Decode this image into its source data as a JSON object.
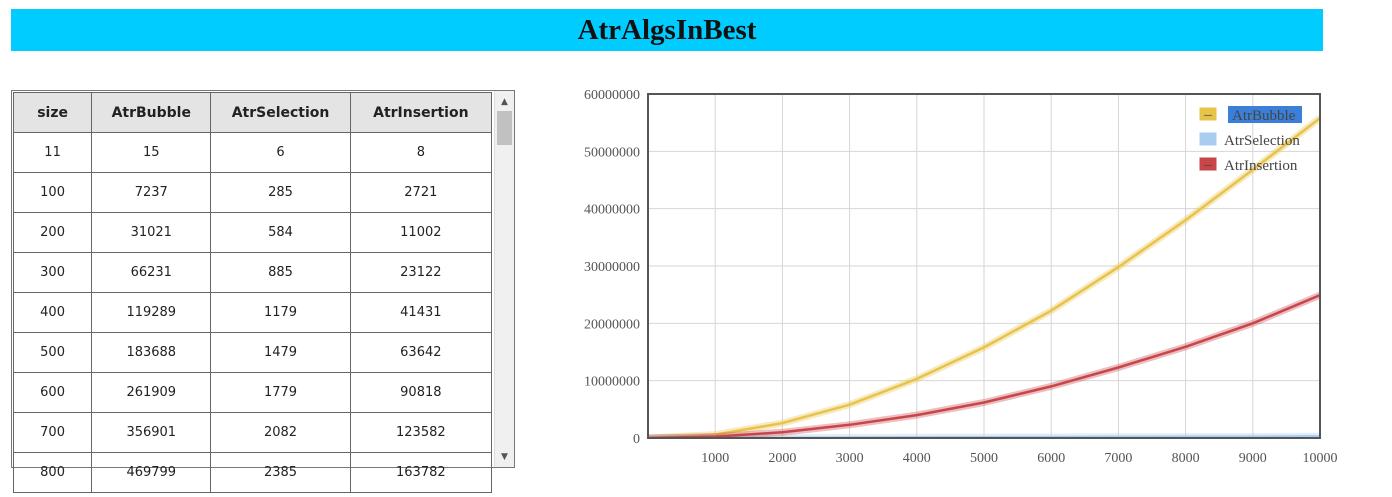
{
  "page": {
    "title": "AtrAlgsInBest"
  },
  "table": {
    "columns": [
      "size",
      "AtrBubble",
      "AtrSelection",
      "AtrInsertion"
    ],
    "rows": [
      [
        "11",
        "15",
        "6",
        "8"
      ],
      [
        "100",
        "7237",
        "285",
        "2721"
      ],
      [
        "200",
        "31021",
        "584",
        "11002"
      ],
      [
        "300",
        "66231",
        "885",
        "23122"
      ],
      [
        "400",
        "119289",
        "1179",
        "41431"
      ],
      [
        "500",
        "183688",
        "1479",
        "63642"
      ],
      [
        "600",
        "261909",
        "1779",
        "90818"
      ],
      [
        "700",
        "356901",
        "2082",
        "123582"
      ],
      [
        "800",
        "469799",
        "2385",
        "163782"
      ]
    ],
    "scroll_up_glyph": "▲",
    "scroll_down_glyph": "▼"
  },
  "chart_data": {
    "type": "line",
    "title": "",
    "xlabel": "",
    "ylabel": "",
    "xlim": [
      0,
      10000
    ],
    "ylim": [
      0,
      60000000
    ],
    "x_ticks": [
      "1000",
      "2000",
      "3000",
      "4000",
      "5000",
      "6000",
      "7000",
      "8000",
      "9000",
      "10000"
    ],
    "y_ticks": [
      "0",
      "10000000",
      "20000000",
      "30000000",
      "40000000",
      "50000000",
      "60000000"
    ],
    "grid": true,
    "legend_position": "top-right",
    "x": [
      0,
      1000,
      2000,
      3000,
      4000,
      5000,
      6000,
      7000,
      8000,
      9000,
      10000
    ],
    "series": [
      {
        "name": "AtrBubble",
        "color": "#e8c34a",
        "values": [
          0,
          600000,
          2600000,
          5800000,
          10300000,
          15800000,
          22200000,
          29800000,
          38000000,
          46800000,
          55800000
        ]
      },
      {
        "name": "AtrSelection",
        "color": "#a8cdf0",
        "values": [
          0,
          30000,
          60000,
          90000,
          120000,
          150000,
          180000,
          210000,
          240000,
          270000,
          300000
        ]
      },
      {
        "name": "AtrInsertion",
        "color": "#c8464a",
        "values": [
          0,
          250000,
          1000000,
          2300000,
          4000000,
          6200000,
          9000000,
          12300000,
          15900000,
          20000000,
          24900000
        ]
      }
    ],
    "legend_marker_glyph": "–"
  }
}
